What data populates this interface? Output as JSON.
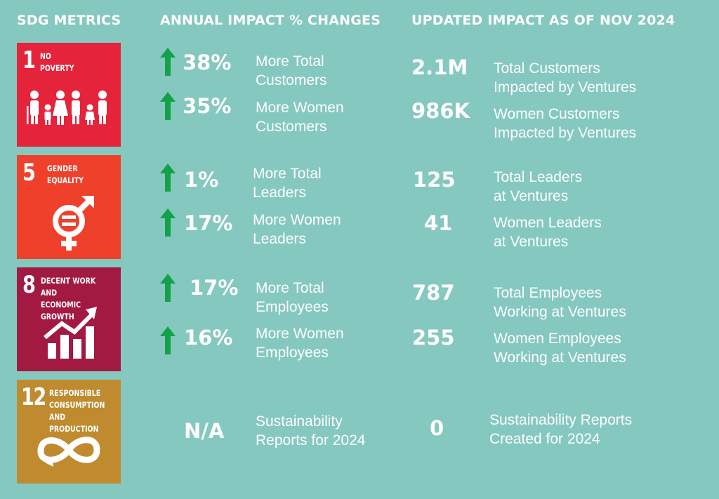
{
  "headers": {
    "sdg": "SDG METRICS",
    "annual": "ANNUAL IMPACT % CHANGES",
    "updated": "UPDATED IMPACT AS OF NOV 2024"
  },
  "tiles": [
    {
      "number": "1",
      "name": "NO\nPOVERTY",
      "color": "#e5243b",
      "icon": "family-icon"
    },
    {
      "number": "5",
      "name": "GENDER\nEQUALITY",
      "color": "#ef402b",
      "icon": "gender-equality-icon"
    },
    {
      "number": "8",
      "name": "DECENT WORK AND\nECONOMIC GROWTH",
      "color": "#a21942",
      "icon": "growth-chart-icon"
    },
    {
      "number": "12",
      "name": "RESPONSIBLE\nCONSUMPTION\nAND PRODUCTION",
      "color": "#bf8b2e",
      "icon": "infinity-icon"
    }
  ],
  "arrow_color": "#13a14a",
  "annual": [
    {
      "value": "38%",
      "label": "More Total\nCustomers"
    },
    {
      "value": "35%",
      "label": "More Women\nCustomers"
    },
    {
      "value": "1%",
      "label": "More Total\nLeaders"
    },
    {
      "value": "17%",
      "label": "More Women\nLeaders"
    },
    {
      "value": "17%",
      "label": "More Total\nEmployees"
    },
    {
      "value": "16%",
      "label": "More Women\nEmployees"
    },
    {
      "value": "N/A",
      "label": "Sustainability\nReports for 2024"
    }
  ],
  "updated": [
    {
      "value": "2.1M",
      "label": "Total Customers\nImpacted by Ventures"
    },
    {
      "value": "986K",
      "label": "Women Customers\nImpacted by Ventures"
    },
    {
      "value": "125",
      "label": "Total Leaders\nat Ventures"
    },
    {
      "value": "41",
      "label": "Women Leaders\nat Ventures"
    },
    {
      "value": "787",
      "label": "Total Employees\nWorking at Ventures"
    },
    {
      "value": "255",
      "label": "Women Employees\nWorking at Ventures"
    },
    {
      "value": "0",
      "label": "Sustainability Reports\nCreated for 2024"
    }
  ]
}
